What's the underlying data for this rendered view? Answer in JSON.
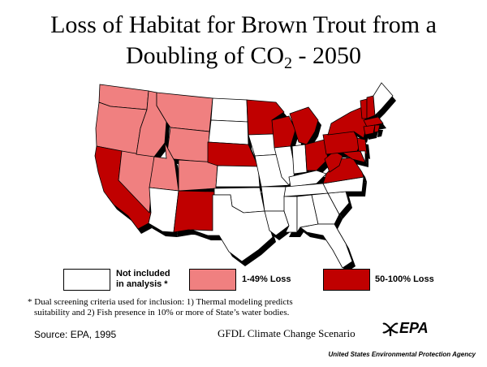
{
  "title": {
    "line1": "Loss of Habitat for Brown Trout from a",
    "line2_pre": "Doubling of CO",
    "line2_sub": "2",
    "line2_post": " - 2050"
  },
  "colors": {
    "not_included": "#ffffff",
    "loss_low": "#f08080",
    "loss_high": "#c00000",
    "border": "#000000"
  },
  "legend": [
    {
      "label_line1": "Not included",
      "label_line2": "in analysis *",
      "color": "#ffffff"
    },
    {
      "label_line1": "1-49% Loss",
      "label_line2": "",
      "color": "#f08080"
    },
    {
      "label_line1": "50-100% Loss",
      "label_line2": "",
      "color": "#c00000"
    }
  ],
  "states": {
    "loss_50_100": [
      "CA",
      "MN",
      "WI",
      "MI",
      "NE",
      "OH",
      "PA",
      "WV",
      "VA",
      "MD",
      "NY",
      "VT",
      "NH",
      "MA",
      "CT",
      "RI",
      "NJ",
      "NM"
    ],
    "loss_1_49": [
      "WA",
      "OR",
      "ID",
      "MT",
      "WY",
      "NV",
      "UT",
      "CO"
    ]
  },
  "footnote": {
    "line1": "* Dual screening criteria used for inclusion: 1) Thermal modeling predicts",
    "line2": "suitability and 2) Fish presence in 10% or more of State’s water bodies."
  },
  "source": "Source: EPA, 1995",
  "scenario": "GFDL Climate Change  Scenario",
  "logo_text": "EPA",
  "agency": "United States Environmental Protection Agency"
}
